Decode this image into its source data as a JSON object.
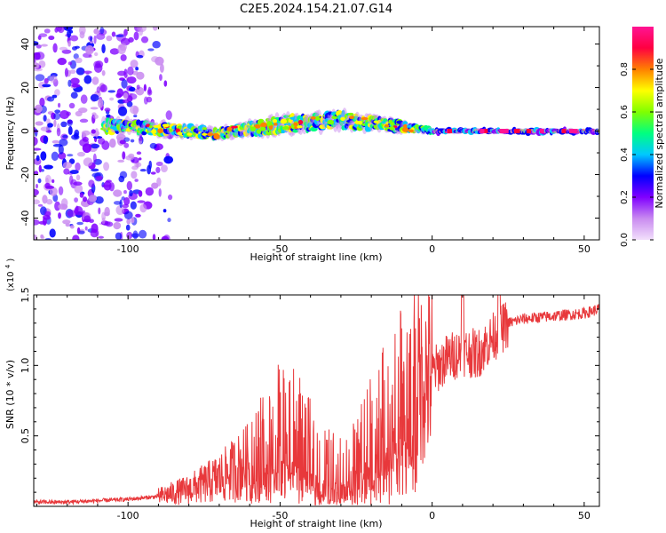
{
  "title": "C2E5.2024.154.21.07.G14",
  "chart_data": [
    {
      "type": "heatmap",
      "xlabel": "Height of straight line (km)",
      "ylabel": "Frequency (Hz)",
      "xlim": [
        -131,
        55
      ],
      "ylim": [
        -50,
        48
      ],
      "x_ticks": [
        -100,
        -50,
        0,
        50
      ],
      "y_ticks": [
        -40,
        -20,
        0,
        20,
        40
      ],
      "colorbar": {
        "label": "Normalized spectral amplitude",
        "range": [
          0,
          1
        ],
        "ticks": [
          "0.0",
          "0.2",
          "0.4",
          "0.6",
          "0.8"
        ],
        "colors": [
          "#f2e0fb",
          "#c98bf0",
          "#8000ff",
          "#0000ff",
          "#00c8ff",
          "#00ff80",
          "#80ff00",
          "#ffff00",
          "#ff8000",
          "#ff0040",
          "#ff1493"
        ]
      },
      "features": {
        "noise_region_x": [
          -131,
          -90
        ],
        "signal_center_hz": 0,
        "signal_band_hz_at_x": [
          {
            "x": -100,
            "center": 2,
            "halfwidth": 4
          },
          {
            "x": -70,
            "center": -1,
            "halfwidth": 3
          },
          {
            "x": -50,
            "center": 3,
            "halfwidth": 5
          },
          {
            "x": -30,
            "center": 5,
            "halfwidth": 5
          },
          {
            "x": -10,
            "center": 2,
            "halfwidth": 3
          },
          {
            "x": 0,
            "center": 0,
            "halfwidth": 1
          },
          {
            "x": 55,
            "center": 0,
            "halfwidth": 1
          }
        ]
      }
    },
    {
      "type": "line",
      "xlabel": "Height of straight line (km)",
      "ylabel": "SNR (10 * v/v)",
      "multiplier_label": "(x10",
      "multiplier_exp": "4",
      "xlim": [
        -131,
        55
      ],
      "ylim": [
        0,
        1.5
      ],
      "x_ticks": [
        -100,
        -50,
        0,
        50
      ],
      "y_ticks": [
        "0.5",
        "1.0",
        "1.5"
      ],
      "y_tick_values": [
        0.5,
        1.0,
        1.5
      ],
      "line_color": "#e8383b",
      "series": [
        {
          "x": [
            -131,
            -120,
            -110,
            -100,
            -90,
            -80,
            -70,
            -60,
            -55,
            -50,
            -45,
            -40,
            -35,
            -30,
            -25,
            -20,
            -15,
            -10,
            -5,
            0,
            5,
            10,
            15,
            20,
            25,
            30,
            40,
            50,
            55
          ],
          "values": [
            0.03,
            0.03,
            0.04,
            0.05,
            0.07,
            0.12,
            0.2,
            0.32,
            0.45,
            0.55,
            0.52,
            0.4,
            0.3,
            0.28,
            0.32,
            0.55,
            0.7,
            0.85,
            0.9,
            0.95,
            1.05,
            1.1,
            1.08,
            1.2,
            1.3,
            1.33,
            1.35,
            1.37,
            1.4
          ]
        }
      ]
    }
  ]
}
